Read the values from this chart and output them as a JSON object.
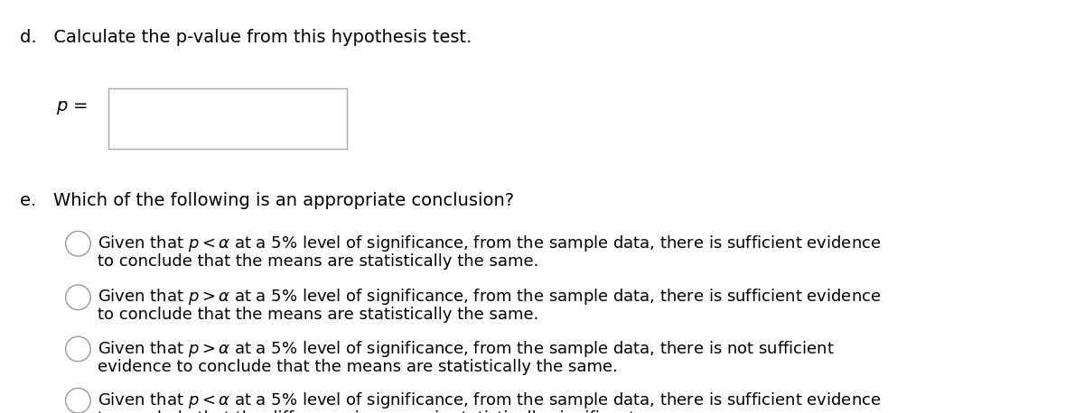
{
  "bg_color": "#ffffff",
  "text_color": "#000000",
  "circle_edge_color": "#999999",
  "title_d": "d.   Calculate the p-value from this hypothesis test.",
  "title_e": "e.   Which of the following is an appropriate conclusion?",
  "font_size_header": 14,
  "font_size_text": 13,
  "options": [
    {
      "line1": "Given that $p < \\alpha$ at a 5% level of significance, from the sample data, there is sufficient evidence",
      "line2": "to conclude that the means are statistically the same."
    },
    {
      "line1": "Given that $p > \\alpha$ at a 5% level of significance, from the sample data, there is sufficient evidence",
      "line2": "to conclude that the means are statistically the same."
    },
    {
      "line1": "Given that $p > \\alpha$ at a 5% level of significance, from the sample data, there is not sufficient",
      "line2": "evidence to conclude that the means are statistically the same."
    },
    {
      "line1": "Given that $p < \\alpha$ at a 5% level of significance, from the sample data, there is sufficient evidence",
      "line2": "to conclude that the difference in means is statistically significant."
    }
  ]
}
